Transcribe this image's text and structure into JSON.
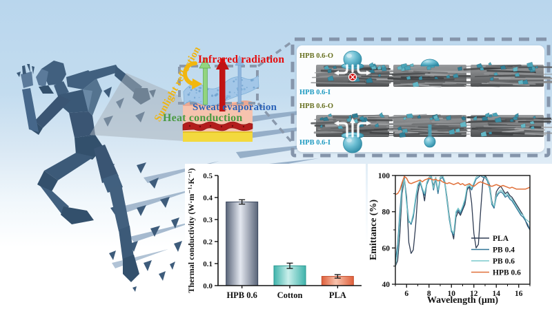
{
  "schematic": {
    "labels": {
      "infrared": {
        "text": "Infrared radiation",
        "color": "#e60b0b"
      },
      "sweat": {
        "text": "Sweat evaporation",
        "color": "#2c63b8"
      },
      "heat": {
        "text": "Heat conduction",
        "color": "#4a9b42"
      },
      "sunlight": {
        "text": "Sunlight reflection",
        "color": "#f0b511"
      }
    }
  },
  "panel": {
    "outer_label_color": "#67701f",
    "inner_label_color": "#1d9ac1",
    "rows": [
      {
        "outer_label": "HPB 0.6-O",
        "inner_label": "HPB 0.6-I",
        "tiles": [
          {
            "droplet": "top-large",
            "arrows": "down-blocked"
          },
          {
            "droplet": "top-medium",
            "arrows": "none"
          },
          {
            "droplet": "none",
            "arrows": "none"
          }
        ]
      },
      {
        "outer_label": "HPB 0.6-O",
        "inner_label": "HPB 0.6-I",
        "tiles": [
          {
            "droplet": "bottom-large",
            "arrows": "up-through"
          },
          {
            "droplet": "bottom-small",
            "arrows": "none"
          },
          {
            "droplet": "none",
            "arrows": "none"
          }
        ]
      }
    ]
  },
  "chart_data": [
    {
      "type": "bar",
      "categories": [
        "HPB 0.6",
        "Cotton",
        "PLA"
      ],
      "values": [
        0.38,
        0.09,
        0.042
      ],
      "errors": [
        0.01,
        0.012,
        0.008
      ],
      "ylabel": "Thermal conductivity (W·m⁻¹·K⁻¹)",
      "ylim": [
        0,
        0.5
      ],
      "yticks": [
        0.0,
        0.1,
        0.2,
        0.3,
        0.4,
        0.5
      ],
      "bar_edge_colors": [
        "#5a6579",
        "#3fb3ab",
        "#df5f3b"
      ],
      "bar_center_colors": [
        "#e4e8f0",
        "#c9efeb",
        "#f8c3ad"
      ],
      "bar_stroke_colors": [
        "#39465e",
        "#2d9a92",
        "#c44f2e"
      ],
      "grid": false
    },
    {
      "type": "line",
      "xlabel": "Wavelength (μm)",
      "ylabel": "Emittance (%)",
      "xlim": [
        5,
        17
      ],
      "ylim": [
        40,
        100
      ],
      "xticks": [
        6,
        8,
        10,
        12,
        14,
        16
      ],
      "yticks": [
        40,
        60,
        80,
        100
      ],
      "legend_position": "inside lower-right",
      "grid": false,
      "x_start": 5.0,
      "x_step": 0.2,
      "series": [
        {
          "name": "PLA",
          "color": "#2e3b52",
          "values": [
            50,
            53,
            68,
            90,
            98,
            88,
            63,
            57,
            59,
            72,
            90,
            97,
            93,
            86,
            96,
            99,
            100,
            94,
            99,
            91,
            99,
            100,
            97,
            88,
            78,
            70,
            65,
            77,
            80,
            78,
            81,
            84,
            92,
            94,
            85,
            68,
            60,
            62,
            80,
            97,
            100,
            98,
            95,
            86,
            82,
            91,
            93,
            94,
            92,
            90,
            91,
            89,
            88,
            86,
            84,
            82,
            80,
            78,
            75,
            72,
            70
          ]
        },
        {
          "name": "PB 0.4",
          "color": "#2f7396",
          "values": [
            53,
            62,
            80,
            95,
            99,
            86,
            75,
            73,
            77,
            86,
            94,
            96,
            92,
            89,
            95,
            98,
            99,
            92,
            98,
            90,
            98,
            99,
            96,
            86,
            76,
            69,
            67,
            79,
            81,
            79,
            82,
            86,
            93,
            94,
            92,
            95,
            98,
            99,
            100,
            99,
            99,
            97,
            93,
            84,
            82,
            88,
            90,
            91,
            90,
            88,
            89,
            87,
            86,
            84,
            82,
            80,
            78,
            77,
            75,
            73,
            70
          ]
        },
        {
          "name": "PB 0.6",
          "color": "#79c9cc",
          "values": [
            50,
            58,
            76,
            93,
            98,
            84,
            74,
            74,
            79,
            88,
            95,
            97,
            93,
            90,
            96,
            99,
            100,
            93,
            99,
            92,
            99,
            100,
            97,
            87,
            77,
            70,
            68,
            80,
            82,
            80,
            83,
            87,
            94,
            95,
            93,
            96,
            99,
            100,
            100,
            100,
            99,
            98,
            94,
            85,
            83,
            89,
            91,
            92,
            91,
            89,
            90,
            88,
            87,
            85,
            83,
            81,
            79,
            78,
            76,
            75,
            74
          ]
        },
        {
          "name": "HPB 0.6",
          "color": "#e06f38",
          "values": [
            89.5,
            90,
            92,
            96,
            99.5,
            98.5,
            96,
            95.5,
            96,
            96.5,
            97,
            97.5,
            96.5,
            97.5,
            98,
            98.5,
            98,
            97.5,
            98,
            97,
            97.5,
            96.5,
            96,
            95.5,
            96,
            95.5,
            95,
            95.5,
            96,
            95,
            95.5,
            94.5,
            95,
            95.5,
            94.5,
            94,
            95,
            96,
            96.5,
            96,
            95.5,
            95,
            94.5,
            94,
            94.5,
            95,
            94.5,
            94,
            94.5,
            94,
            93.5,
            93,
            93.5,
            93,
            92.5,
            92.5,
            92.5,
            92.5,
            92.5,
            93,
            93.5
          ]
        }
      ]
    }
  ]
}
